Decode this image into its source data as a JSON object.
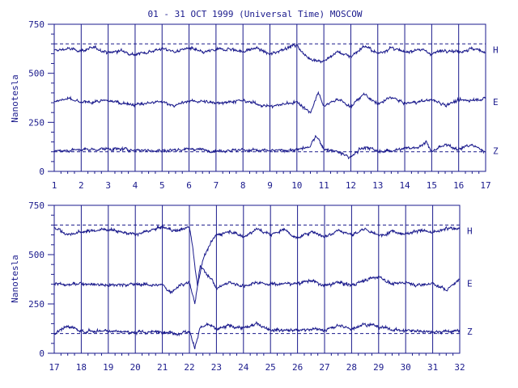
{
  "chart_data": {
    "type": "line",
    "title": "01 - 31 OCT 1999 (Universal Time) MOSCOW",
    "ylabel": "Nanotesla",
    "colors": {
      "line": "#1a1a8c",
      "background": "#ffffff"
    },
    "panels": [
      {
        "xlim": [
          1,
          17
        ],
        "ylim": [
          0,
          750
        ],
        "xticks": [
          "1",
          "2",
          "3",
          "4",
          "5",
          "6",
          "7",
          "8",
          "9",
          "10",
          "11",
          "12",
          "13",
          "14",
          "15",
          "16",
          "17"
        ],
        "yticks": [
          "0",
          "250",
          "500",
          "750"
        ],
        "reference_lines": [
          650,
          100
        ],
        "series": [
          {
            "name": "H",
            "baseline": 620,
            "anchors": [
              [
                1,
                615
              ],
              [
                1.5,
                625
              ],
              [
                2,
                615
              ],
              [
                2.5,
                630
              ],
              [
                3,
                605
              ],
              [
                3.5,
                615
              ],
              [
                4,
                595
              ],
              [
                4.5,
                610
              ],
              [
                5,
                625
              ],
              [
                5.5,
                610
              ],
              [
                6,
                630
              ],
              [
                6.5,
                605
              ],
              [
                7,
                620
              ],
              [
                7.5,
                625
              ],
              [
                8,
                610
              ],
              [
                8.5,
                630
              ],
              [
                9,
                595
              ],
              [
                9.5,
                625
              ],
              [
                10,
                645
              ],
              [
                10.3,
                590
              ],
              [
                10.6,
                570
              ],
              [
                11,
                560
              ],
              [
                11.5,
                610
              ],
              [
                12,
                585
              ],
              [
                12.5,
                640
              ],
              [
                13,
                600
              ],
              [
                13.5,
                630
              ],
              [
                14,
                605
              ],
              [
                14.5,
                625
              ],
              [
                15,
                600
              ],
              [
                15.5,
                620
              ],
              [
                16,
                610
              ],
              [
                16.5,
                625
              ],
              [
                17,
                610
              ]
            ]
          },
          {
            "name": "E",
            "baseline": 355,
            "anchors": [
              [
                1,
                355
              ],
              [
                1.5,
                370
              ],
              [
                2,
                350
              ],
              [
                3,
                360
              ],
              [
                4,
                340
              ],
              [
                5,
                355
              ],
              [
                5.5,
                335
              ],
              [
                6,
                360
              ],
              [
                7,
                350
              ],
              [
                8,
                360
              ],
              [
                9,
                330
              ],
              [
                10,
                355
              ],
              [
                10.5,
                300
              ],
              [
                10.8,
                400
              ],
              [
                11,
                330
              ],
              [
                11.5,
                370
              ],
              [
                12,
                330
              ],
              [
                12.5,
                395
              ],
              [
                13,
                340
              ],
              [
                13.5,
                380
              ],
              [
                14,
                345
              ],
              [
                15,
                365
              ],
              [
                15.5,
                340
              ],
              [
                16,
                360
              ],
              [
                17,
                370
              ]
            ]
          },
          {
            "name": "Z",
            "baseline": 105,
            "anchors": [
              [
                1,
                105
              ],
              [
                2,
                110
              ],
              [
                3,
                115
              ],
              [
                4,
                110
              ],
              [
                5,
                105
              ],
              [
                6,
                115
              ],
              [
                7,
                105
              ],
              [
                8,
                110
              ],
              [
                9,
                105
              ],
              [
                10,
                110
              ],
              [
                10.5,
                125
              ],
              [
                10.7,
                185
              ],
              [
                11,
                115
              ],
              [
                11.5,
                100
              ],
              [
                12,
                70
              ],
              [
                12.3,
                110
              ],
              [
                12.6,
                125
              ],
              [
                13,
                100
              ],
              [
                14,
                115
              ],
              [
                14.5,
                125
              ],
              [
                14.8,
                150
              ],
              [
                15,
                100
              ],
              [
                15.5,
                135
              ],
              [
                16,
                115
              ],
              [
                16.5,
                135
              ],
              [
                17,
                100
              ]
            ]
          }
        ]
      },
      {
        "xlim": [
          17,
          32
        ],
        "ylim": [
          0,
          750
        ],
        "xticks": [
          "17",
          "18",
          "19",
          "20",
          "21",
          "22",
          "23",
          "24",
          "25",
          "26",
          "27",
          "28",
          "29",
          "30",
          "31",
          "32"
        ],
        "yticks": [
          "0",
          "250",
          "500",
          "750"
        ],
        "reference_lines": [
          650,
          100
        ],
        "series": [
          {
            "name": "H",
            "baseline": 620,
            "anchors": [
              [
                17,
                640
              ],
              [
                17.5,
                600
              ],
              [
                18,
                615
              ],
              [
                19,
                630
              ],
              [
                20,
                600
              ],
              [
                21,
                640
              ],
              [
                21.5,
                620
              ],
              [
                22,
                640
              ],
              [
                22.1,
                560
              ],
              [
                22.3,
                340
              ],
              [
                22.5,
                480
              ],
              [
                22.8,
                560
              ],
              [
                23,
                600
              ],
              [
                23.5,
                620
              ],
              [
                24,
                590
              ],
              [
                24.5,
                630
              ],
              [
                25,
                600
              ],
              [
                25.5,
                630
              ],
              [
                26,
                580
              ],
              [
                26.5,
                620
              ],
              [
                27,
                590
              ],
              [
                27.5,
                625
              ],
              [
                28,
                600
              ],
              [
                28.5,
                630
              ],
              [
                29,
                595
              ],
              [
                29.5,
                620
              ],
              [
                30,
                605
              ],
              [
                30.5,
                625
              ],
              [
                31,
                610
              ],
              [
                31.5,
                630
              ],
              [
                32,
                635
              ]
            ]
          },
          {
            "name": "E",
            "baseline": 355,
            "anchors": [
              [
                17,
                355
              ],
              [
                17.5,
                345
              ],
              [
                18,
                355
              ],
              [
                19,
                345
              ],
              [
                20,
                350
              ],
              [
                21,
                345
              ],
              [
                21.3,
                310
              ],
              [
                21.7,
                350
              ],
              [
                22,
                360
              ],
              [
                22.2,
                250
              ],
              [
                22.4,
                440
              ],
              [
                22.8,
                380
              ],
              [
                23,
                330
              ],
              [
                23.5,
                360
              ],
              [
                24,
                340
              ],
              [
                24.5,
                360
              ],
              [
                25,
                350
              ],
              [
                26,
                355
              ],
              [
                26.5,
                370
              ],
              [
                27,
                340
              ],
              [
                27.5,
                360
              ],
              [
                28,
                345
              ],
              [
                28.5,
                370
              ],
              [
                29,
                390
              ],
              [
                29.5,
                350
              ],
              [
                30,
                360
              ],
              [
                30.5,
                345
              ],
              [
                31,
                355
              ],
              [
                31.5,
                320
              ],
              [
                32,
                375
              ]
            ]
          },
          {
            "name": "Z",
            "baseline": 110,
            "anchors": [
              [
                17,
                100
              ],
              [
                17.5,
                140
              ],
              [
                18,
                110
              ],
              [
                19,
                115
              ],
              [
                20,
                105
              ],
              [
                21,
                110
              ],
              [
                21.5,
                100
              ],
              [
                22,
                110
              ],
              [
                22.2,
                30
              ],
              [
                22.4,
                130
              ],
              [
                22.7,
                145
              ],
              [
                23,
                120
              ],
              [
                23.5,
                140
              ],
              [
                24,
                125
              ],
              [
                24.5,
                150
              ],
              [
                25,
                120
              ],
              [
                26,
                115
              ],
              [
                26.5,
                125
              ],
              [
                27,
                115
              ],
              [
                27.5,
                140
              ],
              [
                28,
                125
              ],
              [
                28.5,
                150
              ],
              [
                29,
                135
              ],
              [
                29.5,
                120
              ],
              [
                30,
                115
              ],
              [
                31,
                110
              ],
              [
                32,
                112
              ]
            ]
          }
        ]
      }
    ]
  }
}
